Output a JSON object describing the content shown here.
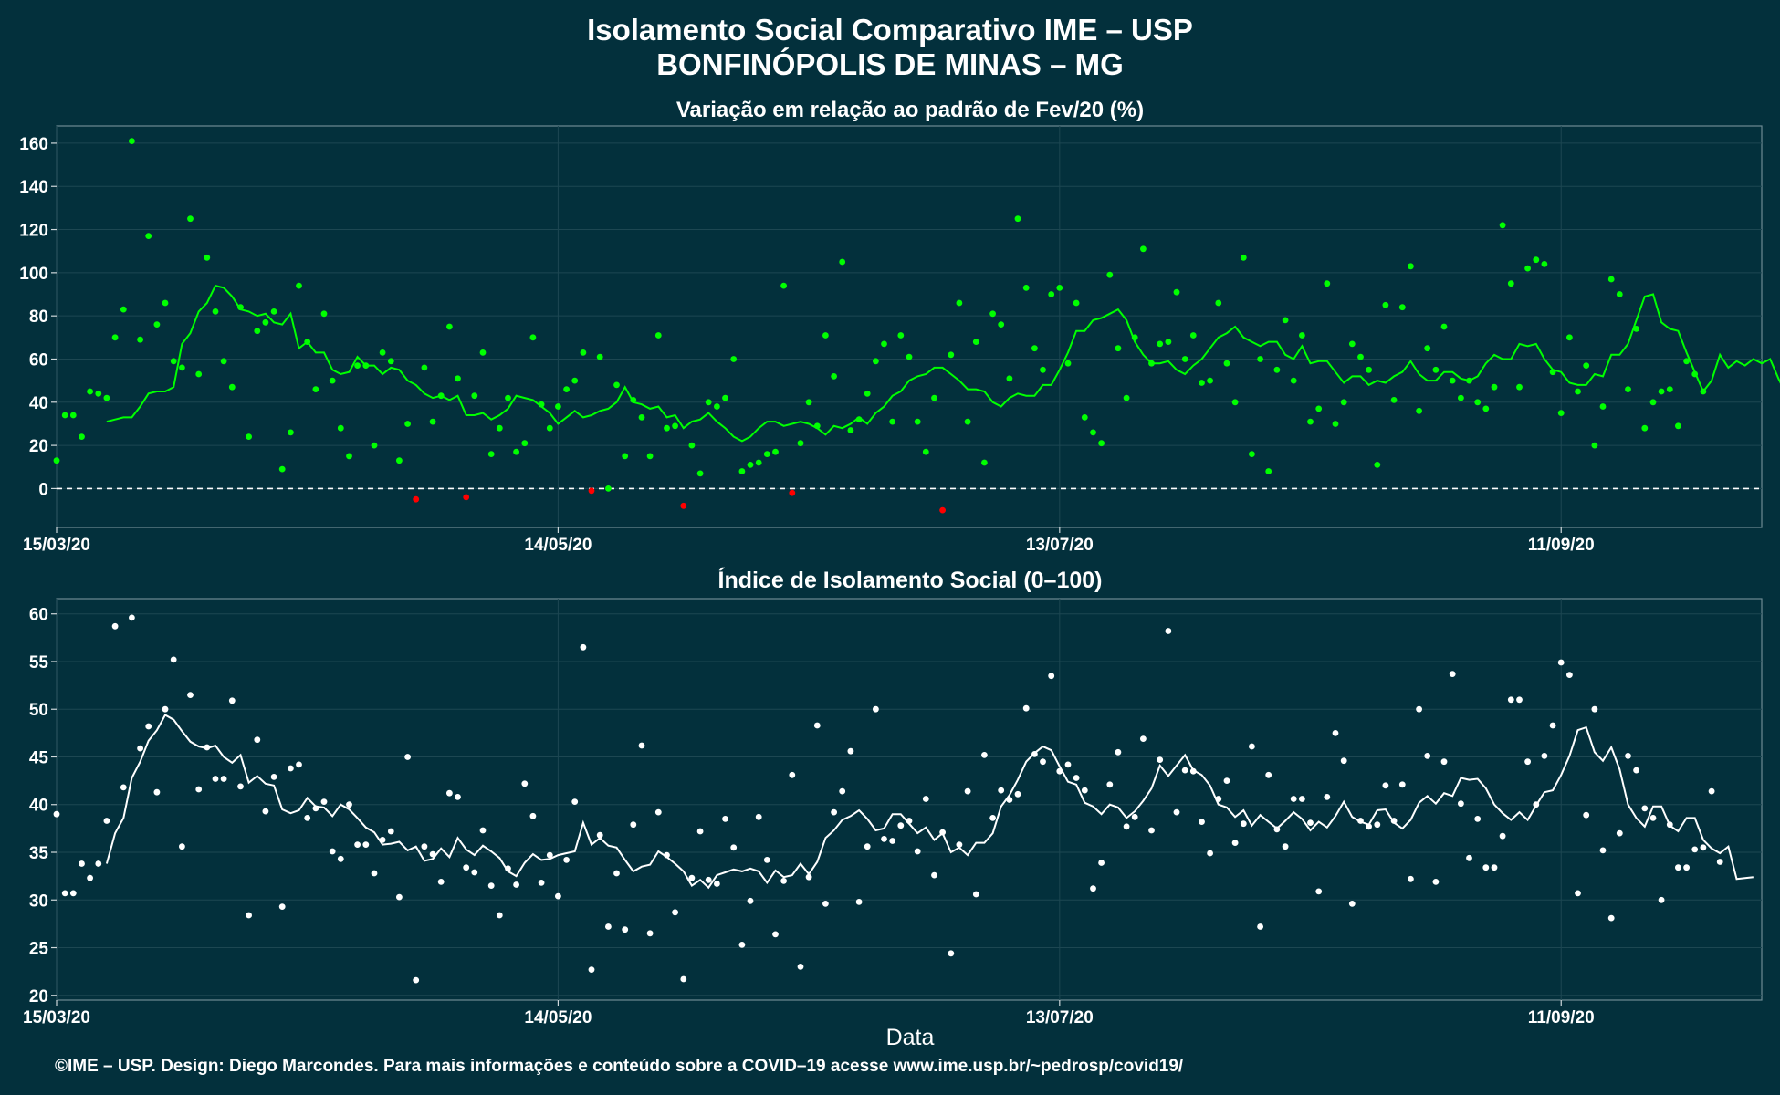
{
  "header": {
    "title": "Isolamento Social Comparativo IME – USP",
    "subtitle": "BONFINÓPOLIS DE MINAS – MG"
  },
  "footer": {
    "credit": "©IME – USP. Design: Diego Marcondes. Para mais informações e conteúdo sobre a COVID–19 acesse www.ime.usp.br/~pedrosp/covid19/"
  },
  "colors": {
    "background": "#03303c",
    "positive": "#00ff00",
    "negative": "#ff0000",
    "index": "#ffffff"
  },
  "chart_data": [
    {
      "type": "scatter",
      "title": "Variação em relação ao padrão de Fev/20 (%)",
      "xlabel": "",
      "ylabel": "",
      "x_range": [
        "2020-03-15",
        "2020-10-05"
      ],
      "ylim": [
        -18,
        168
      ],
      "yticks": [
        0,
        20,
        40,
        60,
        80,
        100,
        120,
        140,
        160
      ],
      "x_tick_dates": [
        "2020-03-15",
        "2020-05-14",
        "2020-07-13",
        "2020-09-11"
      ],
      "x_tick_labels": [
        "15/03/20",
        "14/05/20",
        "13/07/20",
        "11/09/20"
      ],
      "reference_line": 0,
      "grid": true,
      "series": [
        {
          "kind": "points",
          "start_date": "2020-03-15",
          "values": [
            13,
            34,
            34,
            24,
            45,
            44,
            42,
            70,
            83,
            161,
            69,
            117,
            76,
            86,
            59,
            56,
            125,
            53,
            107,
            82,
            59,
            47,
            84,
            24,
            73,
            77,
            82,
            9,
            26,
            94,
            68,
            46,
            81,
            50,
            28,
            15,
            57,
            57,
            20,
            63,
            59,
            13,
            30,
            -5,
            56,
            31,
            43,
            75,
            51,
            -4,
            43,
            63,
            16,
            28,
            42,
            17,
            21,
            70,
            39,
            28,
            38,
            46,
            50,
            63,
            -1,
            61,
            0,
            48,
            15,
            41,
            33,
            15,
            71,
            28,
            29,
            -8,
            20,
            7,
            40,
            38,
            42,
            60,
            8,
            11,
            12,
            16,
            17,
            94,
            -2,
            21,
            40,
            29,
            71,
            52,
            105,
            27,
            32,
            44,
            59,
            67,
            31,
            71,
            61,
            31,
            17,
            42,
            -10,
            62,
            86,
            31,
            68,
            12,
            81,
            76,
            51,
            125,
            93,
            65,
            55,
            90,
            93,
            58,
            86,
            33,
            26,
            21,
            99,
            65,
            42,
            70,
            111,
            58,
            67,
            68,
            91,
            60,
            71,
            49,
            50,
            86,
            58,
            40,
            107,
            16,
            60,
            8,
            55,
            78,
            50,
            71,
            31,
            37,
            95,
            30,
            40,
            67,
            61,
            55,
            11,
            85,
            41,
            84,
            103,
            36,
            65,
            55,
            75,
            50,
            42,
            50,
            40,
            37,
            47,
            122,
            95,
            47,
            102,
            106,
            104,
            54,
            35,
            70,
            45,
            57,
            20,
            38,
            97,
            90,
            46,
            74,
            28,
            40,
            45,
            46,
            29,
            59,
            53,
            45
          ]
        },
        {
          "kind": "moving_average",
          "start_date": "2020-03-21",
          "values": [
            31,
            32,
            33,
            33,
            38,
            44,
            45,
            45,
            47,
            67,
            72,
            82,
            86,
            94,
            93,
            89,
            83,
            82,
            80,
            81,
            77,
            76,
            81,
            65,
            68,
            63,
            63,
            55,
            53,
            54,
            61,
            57,
            57,
            53,
            56,
            55,
            50,
            48,
            44,
            42,
            43,
            41,
            43,
            34,
            34,
            35,
            32,
            34,
            37,
            43,
            42,
            41,
            38,
            35,
            30,
            33,
            36,
            33,
            34,
            36,
            37,
            40,
            47,
            40,
            39,
            37,
            38,
            33,
            34,
            28,
            31,
            32,
            35,
            31,
            28,
            24,
            22,
            24,
            28,
            31,
            31,
            29,
            30,
            31,
            30,
            28,
            25,
            29,
            28,
            30,
            33,
            30,
            35,
            38,
            43,
            45,
            50,
            52,
            53,
            56,
            56,
            53,
            50,
            46,
            46,
            45,
            40,
            38,
            42,
            44,
            43,
            43,
            48,
            48,
            55,
            63,
            73,
            73,
            78,
            79,
            81,
            83,
            78,
            68,
            62,
            58,
            58,
            59,
            55,
            53,
            57,
            60,
            65,
            70,
            72,
            75,
            70,
            68,
            66,
            68,
            68,
            62,
            60,
            66,
            58,
            59,
            59,
            54,
            49,
            52,
            52,
            48,
            50,
            49,
            52,
            54,
            59,
            53,
            50,
            50,
            54,
            54,
            51,
            50,
            52,
            58,
            62,
            60,
            60,
            67,
            66,
            67,
            60,
            55,
            54,
            49,
            48,
            48,
            53,
            52,
            62,
            62,
            67,
            78,
            89,
            90,
            77,
            74,
            73,
            63,
            54,
            45,
            50,
            62,
            56,
            59,
            57,
            60,
            58,
            60,
            51,
            43,
            45,
            45,
            43,
            45
          ]
        }
      ]
    },
    {
      "type": "scatter",
      "title": "Índice de Isolamento Social (0–100)",
      "xlabel": "Data",
      "ylabel": "",
      "x_range": [
        "2020-03-15",
        "2020-10-05"
      ],
      "ylim": [
        19.5,
        61.6
      ],
      "yticks": [
        20,
        25,
        30,
        35,
        40,
        45,
        50,
        55,
        60
      ],
      "x_tick_dates": [
        "2020-03-15",
        "2020-05-14",
        "2020-07-13",
        "2020-09-11"
      ],
      "x_tick_labels": [
        "15/03/20",
        "14/05/20",
        "13/07/20",
        "11/09/20"
      ],
      "grid": true,
      "series": [
        {
          "kind": "points",
          "start_date": "2020-03-15",
          "values": [
            39,
            30.7,
            30.7,
            33.8,
            32.3,
            33.8,
            38.3,
            58.7,
            41.8,
            59.6,
            45.9,
            48.2,
            41.3,
            50.0,
            55.2,
            35.6,
            51.5,
            41.6,
            46.0,
            42.7,
            42.7,
            50.9,
            41.9,
            28.4,
            46.8,
            39.3,
            42.9,
            29.3,
            43.8,
            44.2,
            38.6,
            39.6,
            40.3,
            35.1,
            34.3,
            40.0,
            35.8,
            35.8,
            32.8,
            36.3,
            37.2,
            30.3,
            45.0,
            21.6,
            35.6,
            34.8,
            31.9,
            41.2,
            40.8,
            33.4,
            32.9,
            37.3,
            31.5,
            28.4,
            33.3,
            31.6,
            42.2,
            38.8,
            31.8,
            34.7,
            30.4,
            34.2,
            40.3,
            56.5,
            22.7,
            36.8,
            27.2,
            32.8,
            26.9,
            37.9,
            46.2,
            26.5,
            39.2,
            34.7,
            28.7,
            21.7,
            32.3,
            37.2,
            32.1,
            31.7,
            38.5,
            35.5,
            25.3,
            29.9,
            38.7,
            34.2,
            26.4,
            32.0,
            43.1,
            23.0,
            32.4,
            48.3,
            29.6,
            39.2,
            41.4,
            45.6,
            29.8,
            35.6,
            50.0,
            36.4,
            36.2,
            37.8,
            38.3,
            35.1,
            40.6,
            32.6,
            37.1,
            24.4,
            35.8,
            41.4,
            30.6,
            45.2,
            38.6,
            41.5,
            40.5,
            41.1,
            50.1,
            45.3,
            44.5,
            53.5,
            43.5,
            44.2,
            42.8,
            41.5,
            31.2,
            33.9,
            42.1,
            45.5,
            37.7,
            38.7,
            46.9,
            37.3,
            44.7,
            58.2,
            39.2,
            43.6,
            43.5,
            38.2,
            34.9,
            40.6,
            42.5,
            36.0,
            38.0,
            46.1,
            27.2,
            43.1,
            37.4,
            35.6,
            40.6,
            40.6,
            38.1,
            30.9,
            40.8,
            47.5,
            44.6,
            29.6,
            38.3,
            37.7,
            37.9,
            42.0,
            38.3,
            42.1,
            32.2,
            50.0,
            45.1,
            31.9,
            44.5,
            53.7,
            40.1,
            34.4,
            38.5,
            33.4,
            33.4,
            36.7,
            51.0,
            51.0,
            44.5,
            40.0,
            45.1,
            48.3,
            54.9,
            53.6,
            30.7,
            38.9,
            50.0,
            35.2,
            28.1,
            37.0,
            45.1,
            43.6,
            39.6,
            38.6,
            30.0,
            37.9,
            33.4,
            33.4,
            35.3,
            35.5,
            41.4,
            34.0
          ]
        },
        {
          "kind": "moving_average",
          "start_date": "2020-03-21",
          "values": [
            33.8,
            37.0,
            38.6,
            42.8,
            44.5,
            46.7,
            47.8,
            49.4,
            48.9,
            47.7,
            46.6,
            46.1,
            45.9,
            46.2,
            45.0,
            44.4,
            45.2,
            42.3,
            43.0,
            42.2,
            42.0,
            39.5,
            39.1,
            39.4,
            40.7,
            39.8,
            39.7,
            38.8,
            40.0,
            39.5,
            38.6,
            37.6,
            37.1,
            35.8,
            35.9,
            36.1,
            35.2,
            35.6,
            34.1,
            34.3,
            35.4,
            34.5,
            36.5,
            35.3,
            34.7,
            35.7,
            35.1,
            34.4,
            33.0,
            32.5,
            33.9,
            34.8,
            34.2,
            34.3,
            34.7,
            34.9,
            35.1,
            38.1,
            35.8,
            36.5,
            35.7,
            35.5,
            34.2,
            33.0,
            33.5,
            33.7,
            35.1,
            34.5,
            33.8,
            33.0,
            31.5,
            32.1,
            31.3,
            32.6,
            32.9,
            33.2,
            33.0,
            33.3,
            33.0,
            31.8,
            33.1,
            32.4,
            32.6,
            33.8,
            32.7,
            34.0,
            36.5,
            37.3,
            38.4,
            38.8,
            39.4,
            38.5,
            37.3,
            37.5,
            39.0,
            39.0,
            38.0,
            37.0,
            37.6,
            36.3,
            37.0,
            35.0,
            35.5,
            34.7,
            36.0,
            36.0,
            37.0,
            39.8,
            41.0,
            42.6,
            44.5,
            45.4,
            46.1,
            45.7,
            44.0,
            42.4,
            42.1,
            40.2,
            39.8,
            39.0,
            40.0,
            39.7,
            38.6,
            39.3,
            40.4,
            41.7,
            44.1,
            43.0,
            44.1,
            45.2,
            43.6,
            43.1,
            42.0,
            40.0,
            39.7,
            38.7,
            39.4,
            37.8,
            38.9,
            38.2,
            37.5,
            38.3,
            39.2,
            38.5,
            37.3,
            38.2,
            37.6,
            38.8,
            40.3,
            38.7,
            38.2,
            37.9,
            39.4,
            39.5,
            38.1,
            37.5,
            38.4,
            40.2,
            40.9,
            40.1,
            41.2,
            40.9,
            42.8,
            42.6,
            42.7,
            41.7,
            40.0,
            39.1,
            38.4,
            39.2,
            38.4,
            39.9,
            41.3,
            41.5,
            43.1,
            45.1,
            47.8,
            48.1,
            45.5,
            44.6,
            46.0,
            43.7,
            40.0,
            38.6,
            37.7,
            39.8,
            39.8,
            37.8,
            37.2,
            38.6,
            38.6,
            36.3,
            35.4,
            34.9,
            35.6,
            32.2,
            32.3,
            32.4
          ]
        }
      ]
    }
  ]
}
